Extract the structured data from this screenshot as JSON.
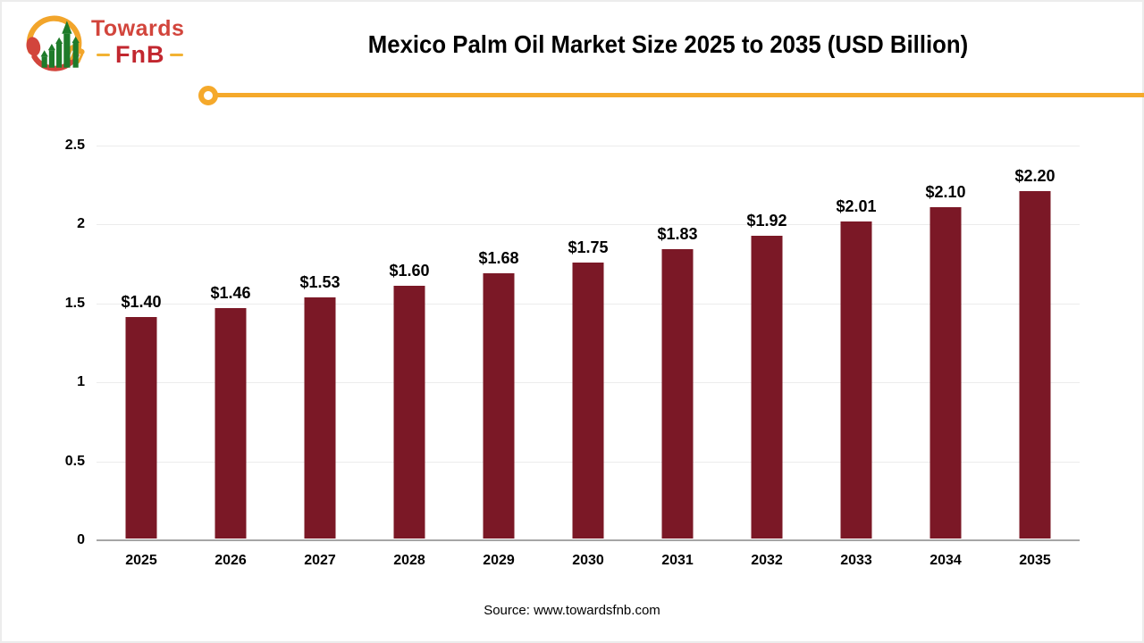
{
  "logo": {
    "brand_top": "Towards",
    "brand_bottom": "FnB"
  },
  "header": {
    "title": "Mexico Palm Oil Market Size 2025 to 2035 (USD Billion)"
  },
  "chart_data": {
    "type": "bar",
    "title": "Mexico Palm Oil Market Size 2025 to 2035 (USD Billion)",
    "categories": [
      "2025",
      "2026",
      "2027",
      "2028",
      "2029",
      "2030",
      "2031",
      "2032",
      "2033",
      "2034",
      "2035"
    ],
    "values": [
      1.4,
      1.46,
      1.53,
      1.6,
      1.68,
      1.75,
      1.83,
      1.92,
      2.01,
      2.1,
      2.2
    ],
    "value_labels": [
      "$1.40",
      "$1.46",
      "$1.53",
      "$1.60",
      "$1.68",
      "$1.75",
      "$1.83",
      "$1.92",
      "$2.01",
      "$2.10",
      "$2.20"
    ],
    "xlabel": "",
    "ylabel": "",
    "ylim": [
      0,
      2.5
    ],
    "ytick_labels": [
      "2.5",
      "2",
      "1.5",
      "1",
      "0.5",
      "0"
    ],
    "grid": "horizontal",
    "legend": "none",
    "bar_color": "#7b1826"
  },
  "footer": {
    "source": "Source: www.towardsfnb.com"
  },
  "colors": {
    "bar": "#7b1826",
    "accent_yellow": "#f5a92b",
    "axis_line": "#a6a6a6",
    "gridline": "#ececec",
    "title_text": "#000000",
    "logo_red": "#d2453c",
    "logo_dark_red": "#c2272f",
    "logo_green": "#1e7b2a",
    "logo_yellow": "#f2a52b"
  }
}
